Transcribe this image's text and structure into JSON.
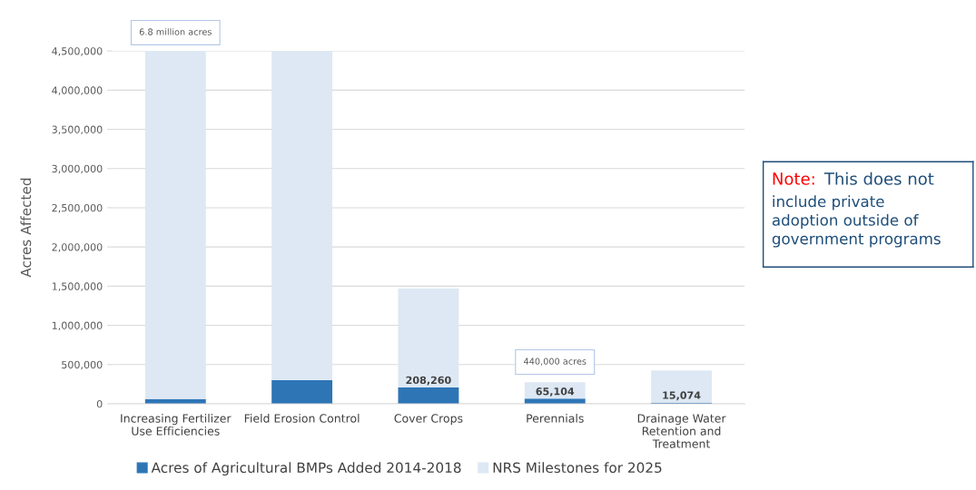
{
  "chart_data": {
    "type": "bar",
    "stacked": true,
    "ylabel": "Acres Affected",
    "categories": [
      "Increasing Fertilizer Use Efficiencies",
      "Field Erosion Control",
      "Cover Crops",
      "Perennials",
      "Drainage Water Retention and Treatment"
    ],
    "series": [
      {
        "name": "Acres of Agricultural BMPs Added 2014-2018",
        "color": "#2e75b6",
        "values": [
          60000,
          300000,
          208260,
          65104,
          15074
        ],
        "value_labels": [
          null,
          null,
          "208,260",
          "65,104",
          "15,074"
        ]
      },
      {
        "name": "NRS Milestones for 2025",
        "color": "#dde8f4",
        "values": [
          4440000,
          4200000,
          1260000,
          210000,
          410000
        ]
      }
    ],
    "ylim": [
      0,
      4500000
    ],
    "yticks": [
      {
        "value": 0,
        "label": "0"
      },
      {
        "value": 500000,
        "label": "500,000"
      },
      {
        "value": 1000000,
        "label": "1,000,000"
      },
      {
        "value": 1500000,
        "label": "1,500,000"
      },
      {
        "value": 2000000,
        "label": "2,000,000"
      },
      {
        "value": 2500000,
        "label": "2,500,000"
      },
      {
        "value": 3000000,
        "label": "3,000,000"
      },
      {
        "value": 3500000,
        "label": "3,500,000"
      },
      {
        "value": 4000000,
        "label": "4,000,000"
      },
      {
        "value": 4500000,
        "label": "4,500,000"
      }
    ],
    "grid": "y",
    "legend": "bottom",
    "annotations": [
      "6.8 million acres",
      "440,000 acres",
      "Note:",
      "This does not include private adoption outside of government programs"
    ]
  }
}
